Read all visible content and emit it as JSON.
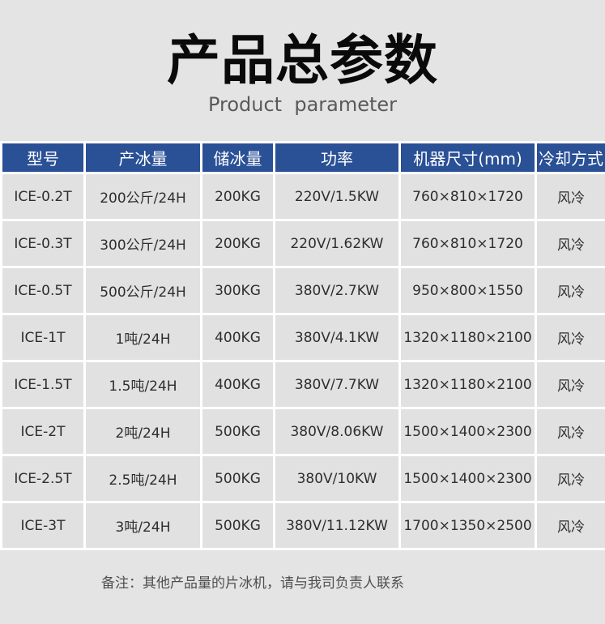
{
  "page": {
    "title": "产品总参数",
    "subtitle": "Product  parameter",
    "note": "备注：其他产品量的片冰机，请与我司负责人联系"
  },
  "colors": {
    "header_bg": "#2a5096",
    "header_text": "#ffffff",
    "cell_bg": "#e1e1e1",
    "page_bg": "#e4e4e4",
    "separator": "#ffffff"
  },
  "table": {
    "headers": [
      {
        "key": "model",
        "label": "型号"
      },
      {
        "key": "capacity",
        "label": "产冰量"
      },
      {
        "key": "storage",
        "label": "储冰量"
      },
      {
        "key": "power",
        "label": "功率"
      },
      {
        "key": "dimensions",
        "label": "机器尺寸(mm)"
      },
      {
        "key": "cooling",
        "label": "冷却方式"
      }
    ],
    "rows": [
      [
        "ICE-0.2T",
        "200公斤/24H",
        "200KG",
        "220V/1.5KW",
        "760×810×1720",
        "风冷"
      ],
      [
        "ICE-0.3T",
        "300公斤/24H",
        "200KG",
        "220V/1.62KW",
        "760×810×1720",
        "风冷"
      ],
      [
        "ICE-0.5T",
        "500公斤/24H",
        "300KG",
        "380V/2.7KW",
        "950×800×1550",
        "风冷"
      ],
      [
        "ICE-1T",
        "1吨/24H",
        "400KG",
        "380V/4.1KW",
        "1320×1180×2100",
        "风冷"
      ],
      [
        "ICE-1.5T",
        "1.5吨/24H",
        "400KG",
        "380V/7.7KW",
        "1320×1180×2100",
        "风冷"
      ],
      [
        "ICE-2T",
        "2吨/24H",
        "500KG",
        "380V/8.06KW",
        "1500×1400×2300",
        "风冷"
      ],
      [
        "ICE-2.5T",
        "2.5吨/24H",
        "500KG",
        "380V/10KW",
        "1500×1400×2300",
        "风冷"
      ],
      [
        "ICE-3T",
        "3吨/24H",
        "500KG",
        "380V/11.12KW",
        "1700×1350×2500",
        "风冷"
      ]
    ]
  }
}
